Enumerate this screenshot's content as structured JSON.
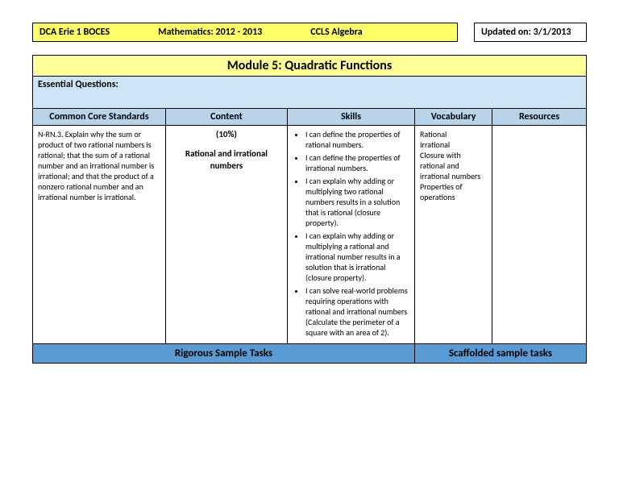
{
  "header": {
    "org": "DCA Erie 1 BOCES",
    "course": "Mathematics: 2012 - 2013",
    "subject": "CCLS Algebra",
    "updated_label": "Updated on: 3/1/2013"
  },
  "module_title": "Module 5: Quadratic Functions",
  "essential_label": "Essential Questions:",
  "columns": {
    "c1": "Common Core Standards",
    "c2": "Content",
    "c3": "Skills",
    "c4": "Vocabulary",
    "c5": "Resources"
  },
  "row": {
    "standards": "N-RN.3. Explain why the sum or product of two rational numbers is rational; that the sum of a rational number and an irrational number is irrational; and that the product of a nonzero rational number and an irrational number is irrational.",
    "content_pct": "(10%)",
    "content_text": "Rational and irrational numbers",
    "skills": [
      "I can define the properties of rational numbers.",
      "I can define the properties of irrational numbers.",
      "I can explain why adding or multiplying two rational numbers results in a solution that is rational (closure property).",
      "I can explain why adding or multiplying a rational and irrational number results in a solution that is irrational (closure property).",
      "I can solve real-world problems requiring operations with rational and irrational numbers (Calculate the perimeter of a square with an area of 2)."
    ],
    "vocab": "Rational\nIrrational\nClosure with rational and irrational numbers\nProperties of operations",
    "resources": ""
  },
  "footer": {
    "left": "Rigorous Sample Tasks",
    "right": "Scaffolded sample tasks"
  },
  "widths": {
    "c1": "24%",
    "c2": "22%",
    "c3": "23%",
    "c4": "14%",
    "c5": "17%"
  }
}
